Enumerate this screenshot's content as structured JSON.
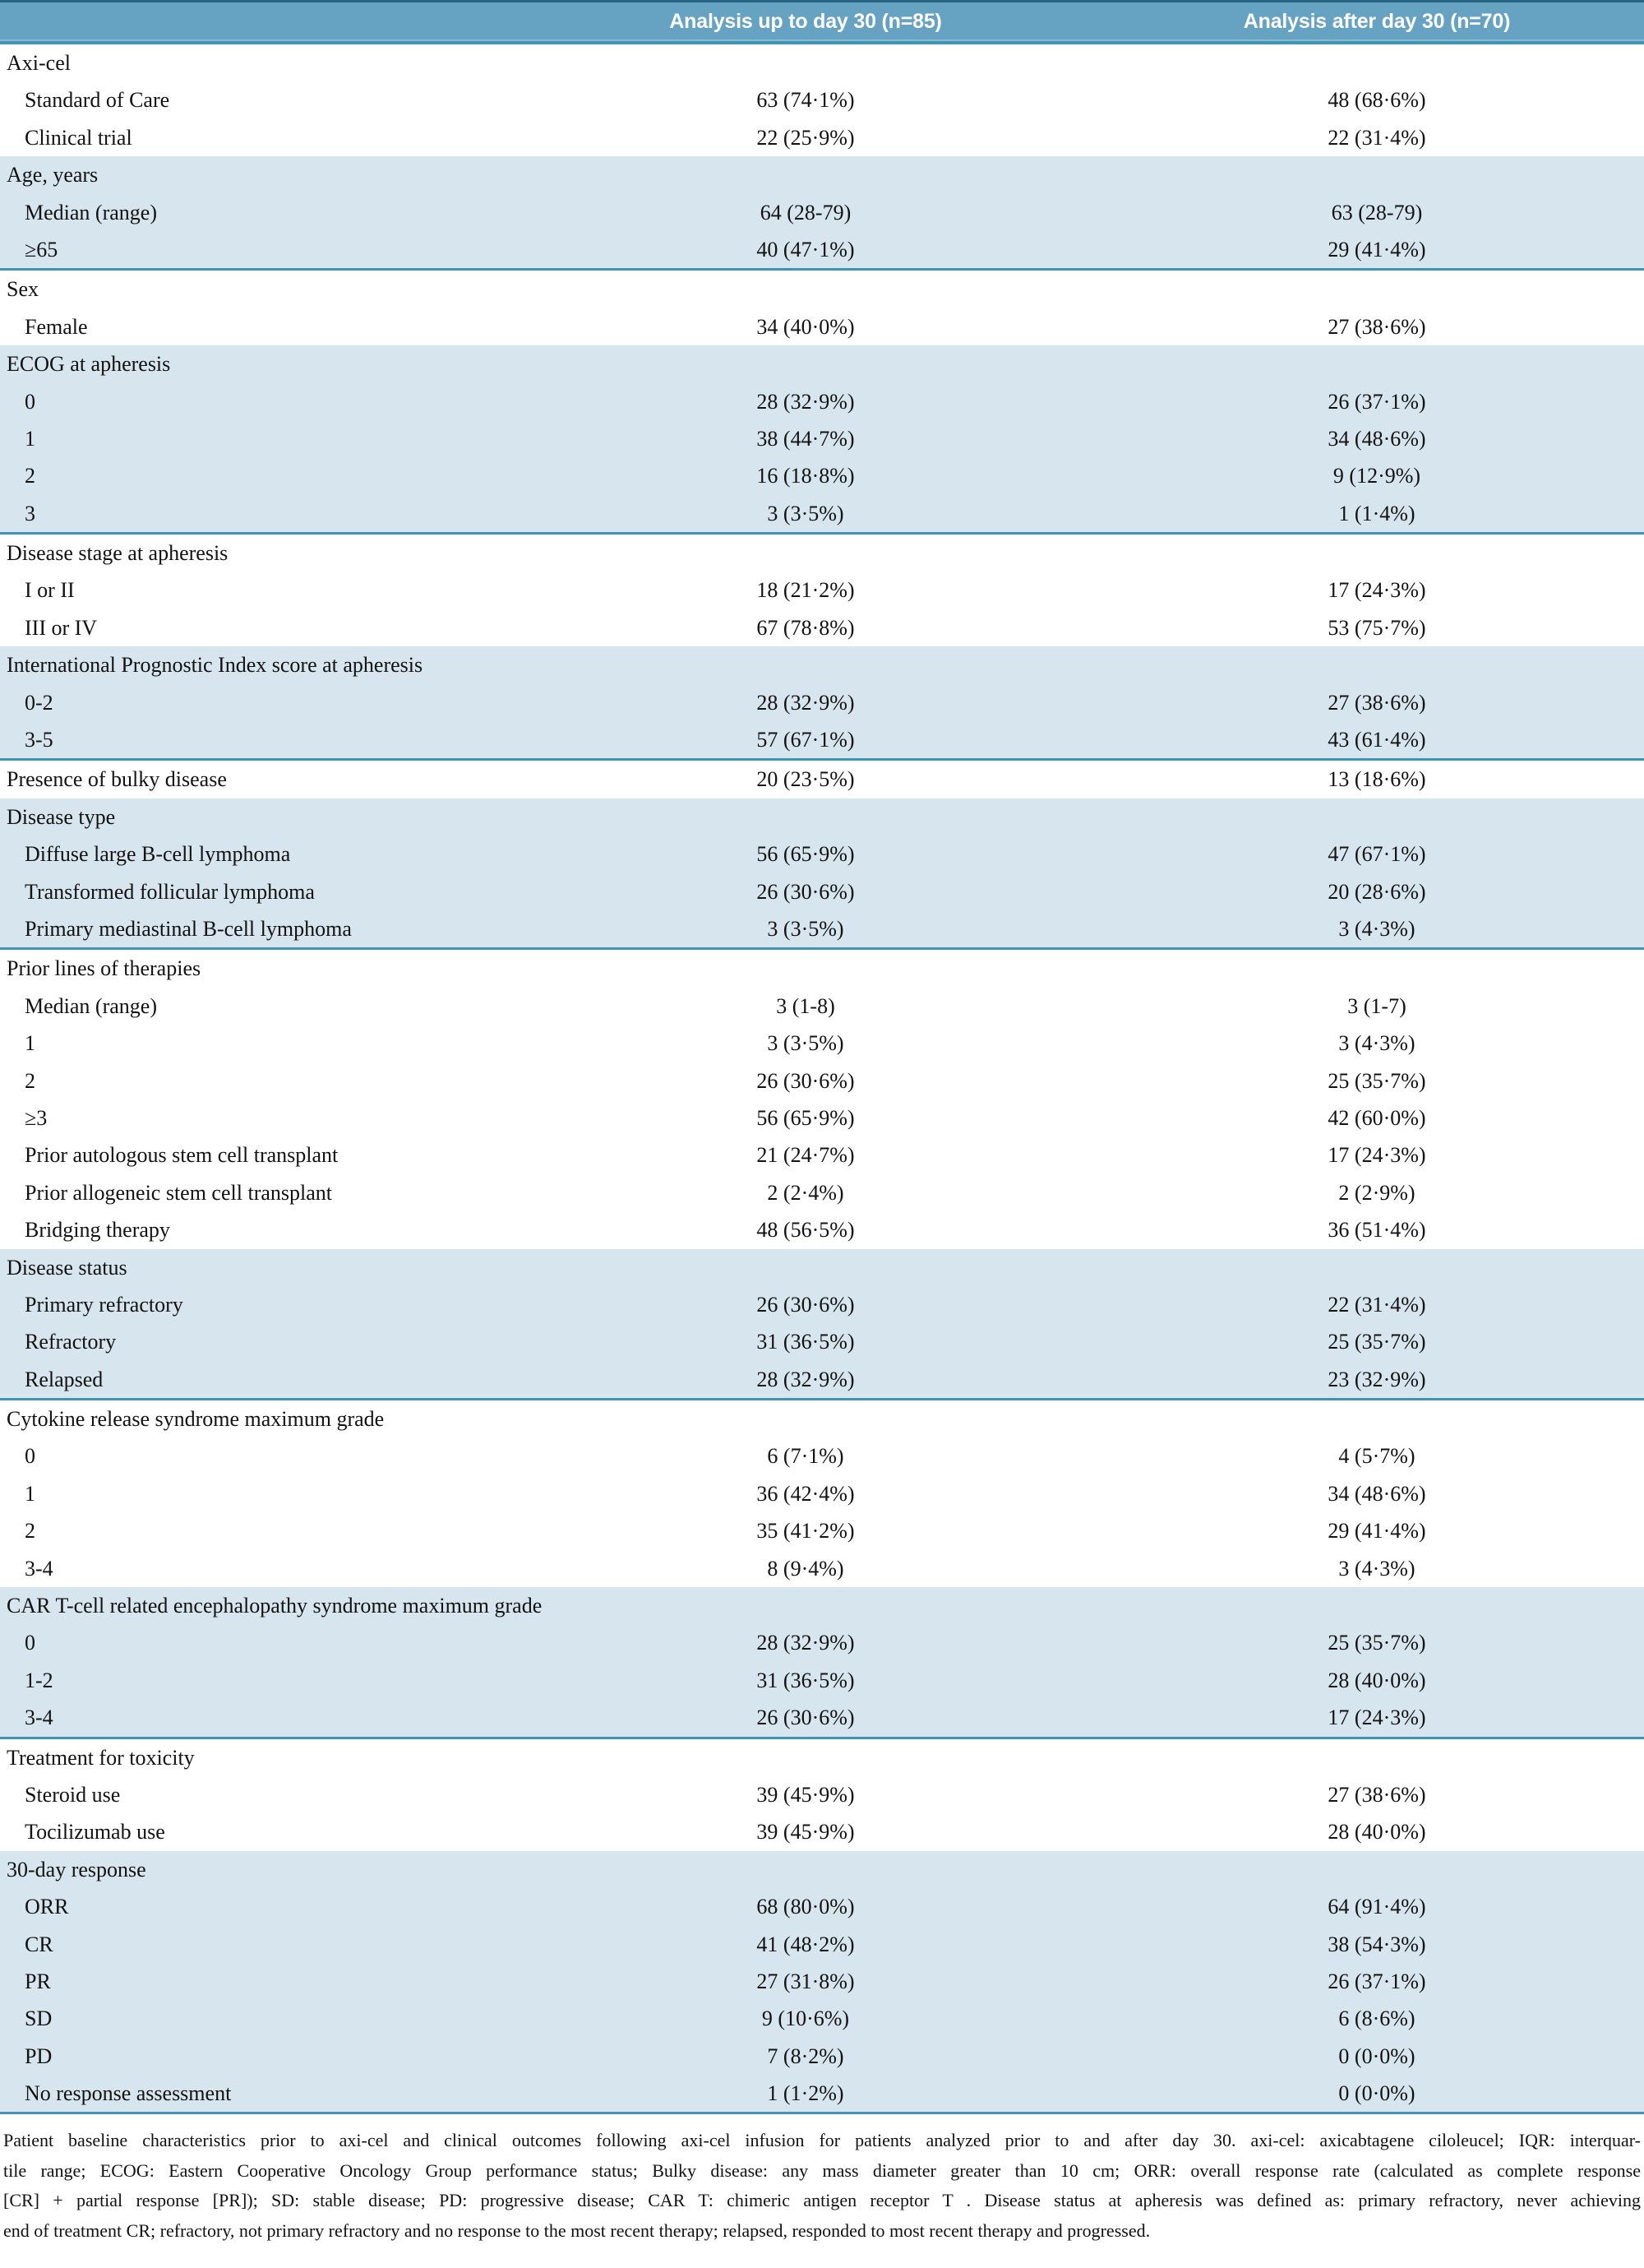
{
  "colors": {
    "header_bg": "#66a3c2",
    "shaded_row_bg": "#d7e5ee",
    "divider_line": "#3d95b3",
    "header_text": "#ffffff",
    "body_text": "#121212"
  },
  "table": {
    "header": {
      "col2": "Analysis up to day 30 (n=85)",
      "col3": "Analysis after day 30 (n=70)"
    },
    "sections": [
      {
        "id": "axi-cel",
        "title": "Axi-cel",
        "shaded": false,
        "values": null,
        "rows": [
          {
            "label": "Standard of Care",
            "v1": "63 (74·1%)",
            "v2": "48 (68·6%)"
          },
          {
            "label": "Clinical trial",
            "v1": "22 (25·9%)",
            "v2": "22 (31·4%)"
          }
        ]
      },
      {
        "id": "age-years",
        "title": "Age, years",
        "shaded": true,
        "values": null,
        "rows": [
          {
            "label": "Median (range)",
            "v1": "64 (28-79)",
            "v2": "63 (28-79)"
          },
          {
            "label": "≥65",
            "v1": "40 (47·1%)",
            "v2": "29 (41·4%)"
          }
        ]
      },
      {
        "id": "sex",
        "title": "Sex",
        "shaded": false,
        "values": null,
        "rows": [
          {
            "label": "Female",
            "v1": "34 (40·0%)",
            "v2": "27 (38·6%)"
          }
        ]
      },
      {
        "id": "ecog-at-apheresis",
        "title": "ECOG at apheresis",
        "shaded": true,
        "values": null,
        "rows": [
          {
            "label": "0",
            "v1": "28 (32·9%)",
            "v2": "26 (37·1%)"
          },
          {
            "label": "1",
            "v1": "38 (44·7%)",
            "v2": "34 (48·6%)"
          },
          {
            "label": "2",
            "v1": "16 (18·8%)",
            "v2": "9 (12·9%)"
          },
          {
            "label": "3",
            "v1": "3 (3·5%)",
            "v2": "1 (1·4%)"
          }
        ]
      },
      {
        "id": "disease-stage-at-apheresis",
        "title": "Disease stage at apheresis",
        "shaded": false,
        "values": null,
        "rows": [
          {
            "label": "I or II",
            "v1": "18 (21·2%)",
            "v2": "17 (24·3%)"
          },
          {
            "label": "III or IV",
            "v1": "67 (78·8%)",
            "v2": "53 (75·7%)"
          }
        ]
      },
      {
        "id": "ipi-score-at-apheresis",
        "title": "International Prognostic Index score at apheresis",
        "shaded": true,
        "values": null,
        "rows": [
          {
            "label": "0-2",
            "v1": "28 (32·9%)",
            "v2": "27 (38·6%)"
          },
          {
            "label": "3-5",
            "v1": "57 (67·1%)",
            "v2": "43 (61·4%)"
          }
        ]
      },
      {
        "id": "presence-of-bulky-disease",
        "title": "Presence of bulky disease",
        "shaded": false,
        "values": {
          "v1": "20 (23·5%)",
          "v2": "13 (18·6%)"
        },
        "rows": []
      },
      {
        "id": "disease-type",
        "title": "Disease type",
        "shaded": true,
        "values": null,
        "rows": [
          {
            "label": "Diffuse large B-cell lymphoma",
            "v1": "56 (65·9%)",
            "v2": "47 (67·1%)"
          },
          {
            "label": "Transformed follicular lymphoma",
            "v1": "26 (30·6%)",
            "v2": "20 (28·6%)"
          },
          {
            "label": "Primary mediastinal B-cell lymphoma",
            "v1": "3 (3·5%)",
            "v2": "3 (4·3%)"
          }
        ]
      },
      {
        "id": "prior-lines-of-therapies",
        "title": "Prior lines of therapies",
        "shaded": false,
        "values": null,
        "rows": [
          {
            "label": "Median (range)",
            "v1": "3 (1-8)",
            "v2": "3 (1-7)"
          },
          {
            "label": "1",
            "v1": "3 (3·5%)",
            "v2": "3 (4·3%)"
          },
          {
            "label": "2",
            "v1": "26 (30·6%)",
            "v2": "25 (35·7%)"
          },
          {
            "label": "≥3",
            "v1": "56 (65·9%)",
            "v2": "42 (60·0%)"
          },
          {
            "label": "Prior autologous stem cell transplant",
            "v1": "21 (24·7%)",
            "v2": "17 (24·3%)"
          },
          {
            "label": "Prior allogeneic stem cell transplant",
            "v1": "2 (2·4%)",
            "v2": "2 (2·9%)"
          },
          {
            "label": "Bridging therapy",
            "v1": "48 (56·5%)",
            "v2": "36 (51·4%)"
          }
        ]
      },
      {
        "id": "disease-status",
        "title": "Disease status",
        "shaded": true,
        "values": null,
        "rows": [
          {
            "label": "Primary refractory",
            "v1": "26 (30·6%)",
            "v2": "22 (31·4%)"
          },
          {
            "label": "Refractory",
            "v1": "31 (36·5%)",
            "v2": "25 (35·7%)"
          },
          {
            "label": "Relapsed",
            "v1": "28 (32·9%)",
            "v2": "23 (32·9%)"
          }
        ]
      },
      {
        "id": "crs-maximum-grade",
        "title": "Cytokine release syndrome maximum grade",
        "shaded": false,
        "values": null,
        "rows": [
          {
            "label": "0",
            "v1": "6 (7·1%)",
            "v2": "4 (5·7%)"
          },
          {
            "label": "1",
            "v1": "36 (42·4%)",
            "v2": "34 (48·6%)"
          },
          {
            "label": "2",
            "v1": "35 (41·2%)",
            "v2": "29 (41·4%)"
          },
          {
            "label": "3-4",
            "v1": "8 (9·4%)",
            "v2": "3 (4·3%)"
          }
        ]
      },
      {
        "id": "car-t-encephalopathy-maximum-grade",
        "title": "CAR T-cell related encephalopathy syndrome maximum grade",
        "shaded": true,
        "values": null,
        "rows": [
          {
            "label": "0",
            "v1": "28 (32·9%)",
            "v2": "25 (35·7%)"
          },
          {
            "label": "1-2",
            "v1": "31 (36·5%)",
            "v2": "28 (40·0%)"
          },
          {
            "label": "3-4",
            "v1": "26 (30·6%)",
            "v2": "17 (24·3%)"
          }
        ]
      },
      {
        "id": "treatment-for-toxicity",
        "title": "Treatment for toxicity",
        "shaded": false,
        "values": null,
        "rows": [
          {
            "label": "Steroid use",
            "v1": "39 (45·9%)",
            "v2": "27 (38·6%)"
          },
          {
            "label": "Tocilizumab use",
            "v1": "39 (45·9%)",
            "v2": "28 (40·0%)"
          }
        ]
      },
      {
        "id": "thirty-day-response",
        "title": "30-day response",
        "shaded": true,
        "values": null,
        "rows": [
          {
            "label": "ORR",
            "v1": "68 (80·0%)",
            "v2": "64 (91·4%)"
          },
          {
            "label": "CR",
            "v1": "41 (48·2%)",
            "v2": "38 (54·3%)"
          },
          {
            "label": "PR",
            "v1": "27 (31·8%)",
            "v2": "26 (37·1%)"
          },
          {
            "label": "SD",
            "v1": "9 (10·6%)",
            "v2": "6 (8·6%)"
          },
          {
            "label": "PD",
            "v1": "7 (8·2%)",
            "v2": "0 (0·0%)"
          },
          {
            "label": "No response assessment",
            "v1": "1 (1·2%)",
            "v2": "0 (0·0%)"
          }
        ]
      }
    ]
  },
  "footer": {
    "lines": [
      "Patient baseline characteristics prior to axi-cel and clinical outcomes following axi-cel infusion for patients analyzed prior to and after day 30. axi-cel: axicabtagene ciloleucel; IQR: interquar-",
      "tile range; ECOG: Eastern Cooperative Oncology Group performance status; Bulky disease: any mass diameter greater than 10 cm; ORR: overall response rate (calculated as complete response",
      "[CR] + partial response [PR]); SD: stable disease; PD: progressive disease; CAR T: chimeric antigen receptor T . Disease status at apheresis was defined as: primary refractory, never achieving",
      "end of treatment CR; refractory, not primary refractory and no response to the most recent therapy; relapsed, responded to most recent therapy and progressed."
    ]
  }
}
